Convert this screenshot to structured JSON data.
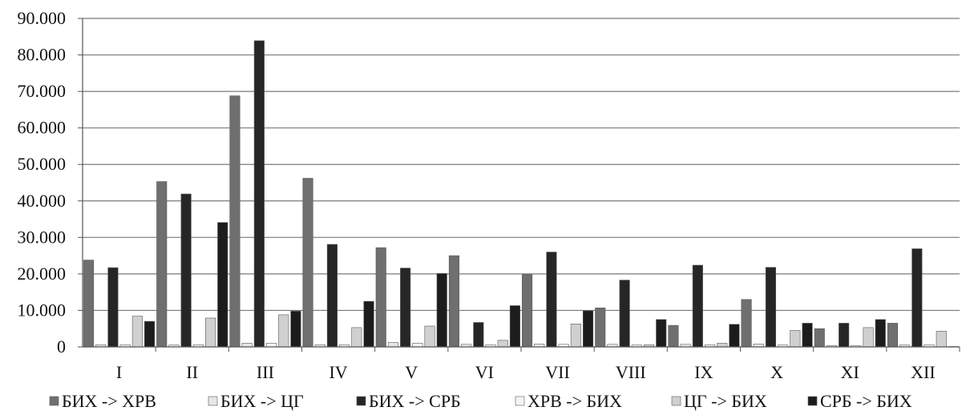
{
  "chart_data": {
    "type": "bar",
    "categories": [
      "I",
      "II",
      "III",
      "IV",
      "V",
      "VI",
      "VII",
      "VIII",
      "IX",
      "X",
      "XI",
      "XII"
    ],
    "ylim": [
      0,
      90000
    ],
    "yticks": [
      {
        "value": 0,
        "label": "0"
      },
      {
        "value": 10000,
        "label": "10.000"
      },
      {
        "value": 20000,
        "label": "20.000"
      },
      {
        "value": 30000,
        "label": "30.000"
      },
      {
        "value": 40000,
        "label": "40.000"
      },
      {
        "value": 50000,
        "label": "50.000"
      },
      {
        "value": 60000,
        "label": "60.000"
      },
      {
        "value": 70000,
        "label": "70.000"
      },
      {
        "value": 80000,
        "label": "80.000"
      },
      {
        "value": 90000,
        "label": "90.000"
      }
    ],
    "grid": true,
    "legend_position": "bottom",
    "series": [
      {
        "name": "БИХ -> ХРВ",
        "color": "#6f6f6f",
        "values": [
          23800,
          45300,
          68800,
          46200,
          27200,
          25000,
          19800,
          10700,
          5900,
          13000,
          5000,
          6500
        ]
      },
      {
        "name": "БИХ -> ЦГ",
        "color": "#e6e6e6",
        "values": [
          600,
          500,
          1000,
          600,
          1200,
          700,
          800,
          700,
          700,
          800,
          400,
          500
        ]
      },
      {
        "name": "БИХ -> СРБ",
        "color": "#262626",
        "values": [
          21700,
          41900,
          83900,
          28100,
          21600,
          6700,
          26000,
          18300,
          22400,
          21800,
          6500,
          26900
        ]
      },
      {
        "name": "ХРВ -> БИХ",
        "color": "#f4f4f4",
        "values": [
          600,
          600,
          1000,
          600,
          1000,
          600,
          700,
          500,
          600,
          500,
          400,
          600
        ]
      },
      {
        "name": "ЦГ -> БИХ",
        "color": "#d0d0d0",
        "values": [
          8400,
          7900,
          8800,
          5300,
          5700,
          1800,
          6300,
          600,
          1000,
          4500,
          5300,
          4300
        ]
      },
      {
        "name": "СРБ -> БИХ",
        "color": "#1c1c1c",
        "values": [
          7000,
          34100,
          9800,
          12500,
          20100,
          11300,
          9900,
          7500,
          6200,
          6500,
          7500,
          100
        ]
      }
    ]
  }
}
